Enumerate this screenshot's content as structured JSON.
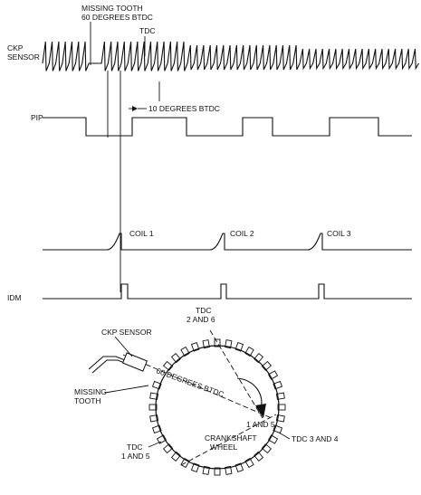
{
  "signals": {
    "ckp": {
      "label_line1": "CKP",
      "label_line2": "SENSOR"
    },
    "pip": {
      "label": "PIP"
    },
    "idm": {
      "label": "IDM"
    },
    "coils": [
      "COIL 1",
      "COIL 2",
      "COIL 3"
    ]
  },
  "annotations": {
    "missing_tooth_top_line1": "MISSING TOOTH",
    "missing_tooth_top_line2": "60 DEGREES BTDC",
    "tdc_top": "TDC",
    "ten_degrees": "10 DEGREES BTDC"
  },
  "wheel": {
    "ckp_sensor": "CKP SENSOR",
    "missing_tooth_line1": "MISSING",
    "missing_tooth_line2": "TOOTH",
    "tdc_2_6_line1": "TDC",
    "tdc_2_6_line2": "2 AND 6",
    "sixty_degrees": "60 DEGREES BTDC",
    "one_and_5": "1 AND 5",
    "tdc_3_4": "TDC 3 AND 4",
    "tdc_1_5_line1": "TDC",
    "tdc_1_5_line2": "1 AND 5",
    "crank_line1": "CRANKSHAFT",
    "crank_line2": "WHEEL"
  }
}
